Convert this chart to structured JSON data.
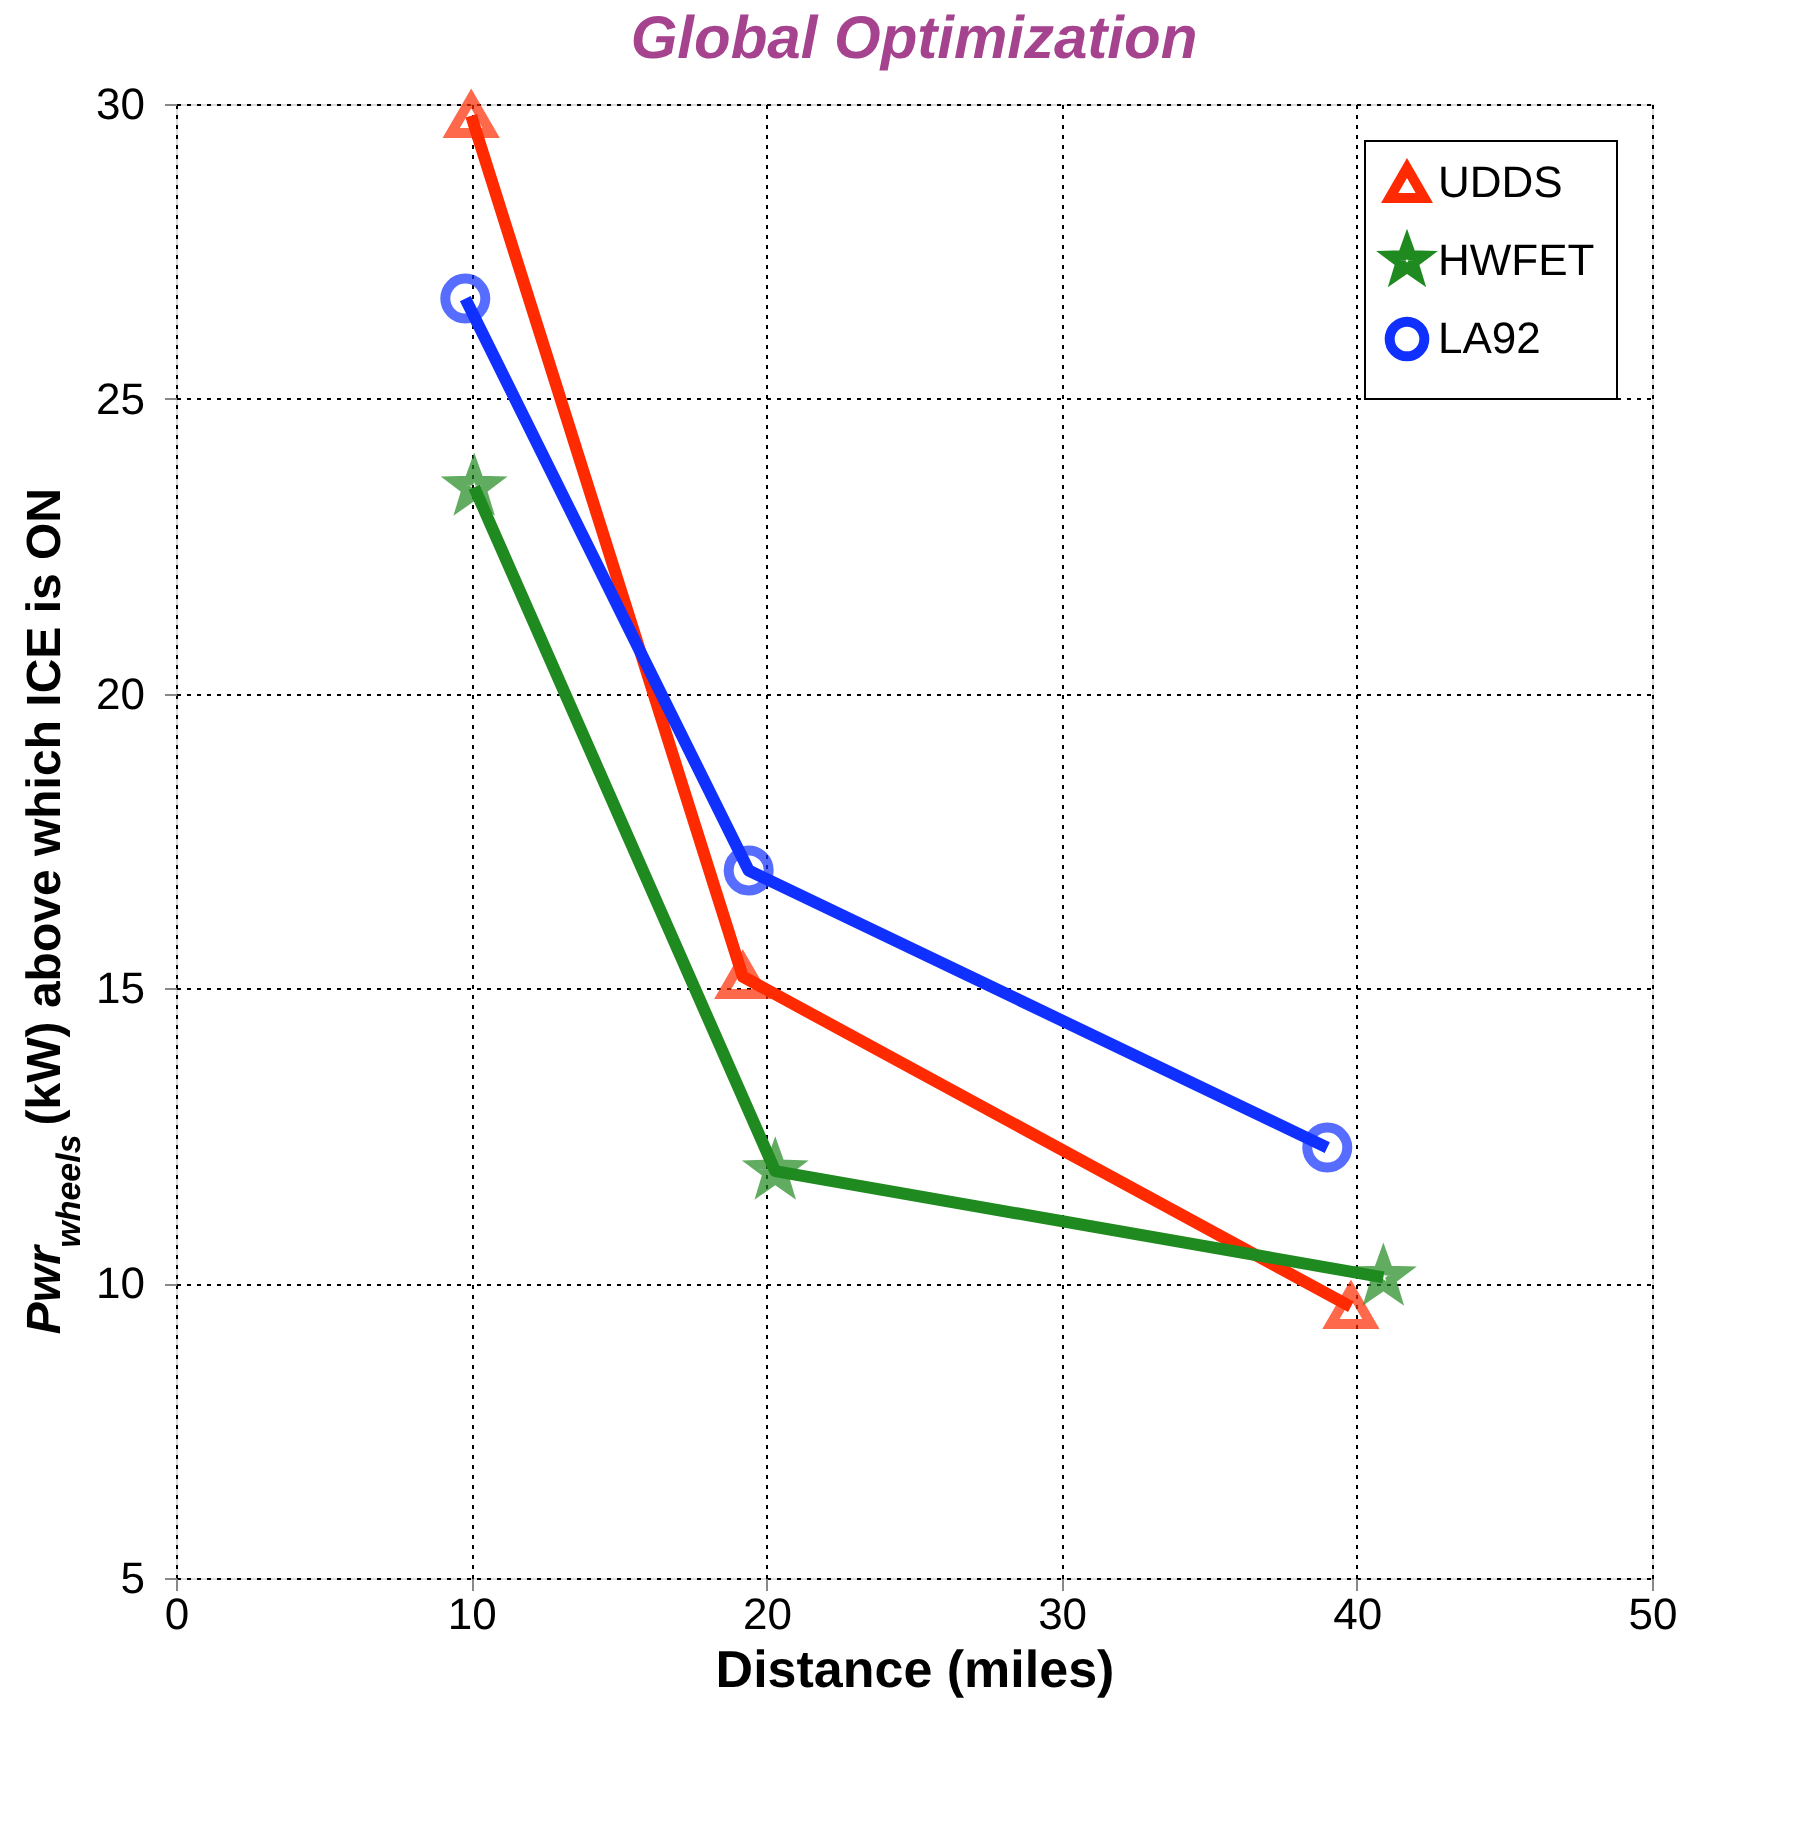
{
  "chart_data": {
    "type": "line",
    "title": "Global Optimization",
    "xlabel": "Distance (miles)",
    "ylabel": "Pwr$_{wheels}$ (kW) above which ICE is ON",
    "xlim": [
      0,
      50
    ],
    "xticks": [
      0,
      10,
      20,
      30,
      40,
      50
    ],
    "ylim": [
      5,
      30
    ],
    "yticks": [
      5,
      10,
      15,
      20,
      25,
      30
    ],
    "grid": true,
    "legend": "top right",
    "line_style": "solid",
    "series": [
      {
        "name": "UDDS",
        "color": "#ff2a00",
        "marker": "triangle",
        "x": [
          10,
          19.2,
          39.8
        ],
        "values": [
          29.8,
          15.2,
          9.6
        ]
      },
      {
        "name": "HWFET",
        "color": "#1f8a1f",
        "marker": "star",
        "x": [
          10.1,
          20.3,
          40.9
        ],
        "values": [
          23.5,
          11.9,
          10.1
        ]
      },
      {
        "name": "LA92",
        "color": "#1030ff",
        "marker": "circle",
        "x": [
          9.8,
          19.4,
          39.0
        ],
        "values": [
          26.7,
          17.0,
          12.3
        ]
      }
    ]
  }
}
